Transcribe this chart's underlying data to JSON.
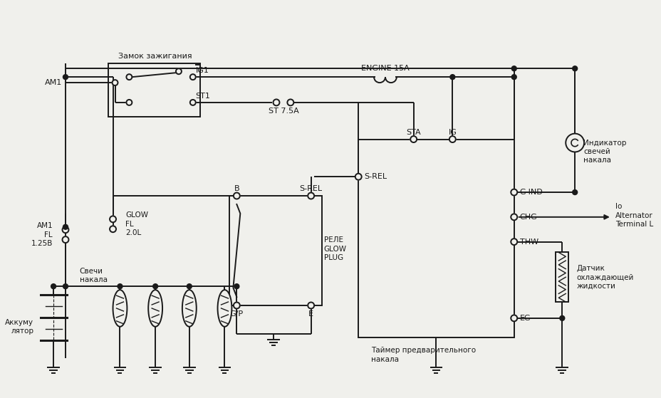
{
  "bg_color": "#f0f0ec",
  "line_color": "#1a1a1a",
  "labels": {
    "zamok": "Замок зажигания",
    "am1_left": "AM1",
    "ig1": "IG1",
    "st1": "ST1",
    "engine_15a": "ENGINE 15A",
    "st_7_5a": "ST 7.5A",
    "am1_fl": "AM1\nFL\n1.25B",
    "glow_fl": "GLOW\nFL\n2.0L",
    "b_label": "B",
    "s_rel_relay": "S-REL",
    "gp_label": "G/P",
    "e_label": "E",
    "rele_glow": "РЕЛЕ\nGLOW\nPLUG",
    "s_rel_timer": "S-REL",
    "sta": "STA",
    "ig": "IG",
    "g_ind": "G-IND",
    "chg": "CHG",
    "thw": "THW",
    "eg": "EG",
    "indicator_label": "Индикатор\nсвечей\nнакала",
    "alternator": "lo\nAlternator\nTerminal L",
    "akkum": "Аккуму\nлятор",
    "svechi": "Свечи\nнакала",
    "tajmer": "Таймер предварительного\nнакала",
    "datchik": "Датчик\nохлаждающей\nжидкости"
  }
}
